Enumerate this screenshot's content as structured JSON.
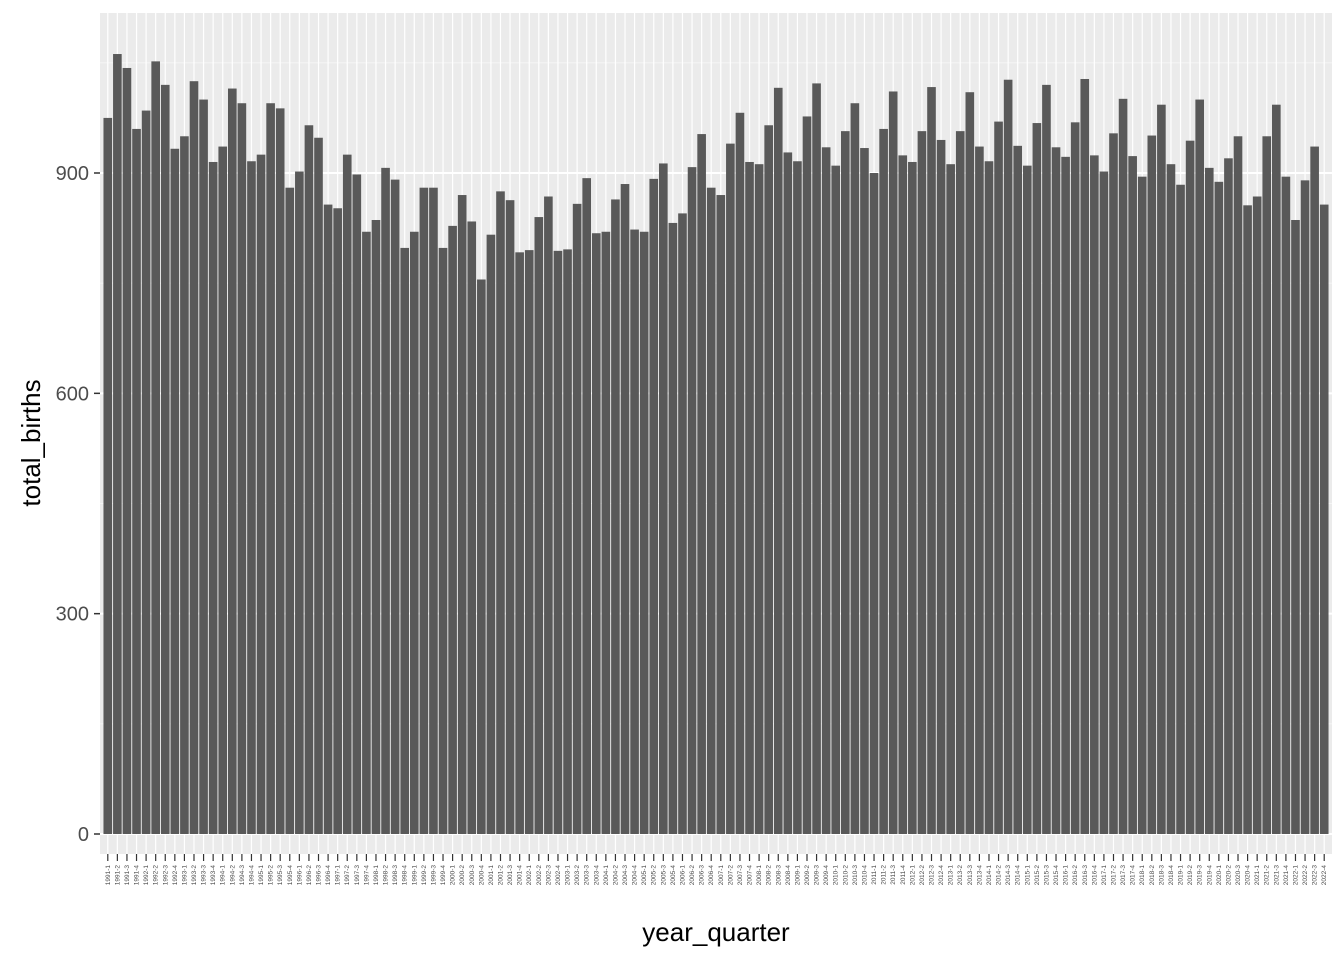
{
  "chart_data": {
    "type": "bar",
    "title": "",
    "xlabel": "year_quarter",
    "ylabel": "total_births",
    "ylim": [
      0,
      1080
    ],
    "yticks": [
      0,
      300,
      600,
      900
    ],
    "grid": true,
    "panel_background": "#ebebeb",
    "bar_color": "#595959",
    "categories": [
      "1991-1",
      "1991-2",
      "1991-3",
      "1991-4",
      "1992-1",
      "1992-2",
      "1992-3",
      "1992-4",
      "1993-1",
      "1993-2",
      "1993-3",
      "1993-4",
      "1994-1",
      "1994-2",
      "1994-3",
      "1994-4",
      "1995-1",
      "1995-2",
      "1995-3",
      "1995-4",
      "1996-1",
      "1996-2",
      "1996-3",
      "1996-4",
      "1997-1",
      "1997-2",
      "1997-3",
      "1997-4",
      "1998-1",
      "1998-2",
      "1998-3",
      "1998-4",
      "1999-1",
      "1999-2",
      "1999-3",
      "1999-4",
      "2000-1",
      "2000-2",
      "2000-3",
      "2000-4",
      "2001-1",
      "2001-2",
      "2001-3",
      "2001-4",
      "2002-1",
      "2002-2",
      "2002-3",
      "2002-4",
      "2003-1",
      "2003-2",
      "2003-3",
      "2003-4",
      "2004-1",
      "2004-2",
      "2004-3",
      "2004-4",
      "2005-1",
      "2005-2",
      "2005-3",
      "2005-4",
      "2006-1",
      "2006-2",
      "2006-3",
      "2006-4",
      "2007-1",
      "2007-2",
      "2007-3",
      "2007-4",
      "2008-1",
      "2008-2",
      "2008-3",
      "2008-4",
      "2009-1",
      "2009-2",
      "2009-3",
      "2009-4",
      "2010-1",
      "2010-2",
      "2010-3",
      "2010-4",
      "2011-1",
      "2011-2",
      "2011-3",
      "2011-4",
      "2012-1",
      "2012-2",
      "2012-3",
      "2012-4",
      "2013-1",
      "2013-2",
      "2013-3",
      "2013-4",
      "2014-1",
      "2014-2",
      "2014-3",
      "2014-4",
      "2015-1",
      "2015-2",
      "2015-3",
      "2015-4",
      "2016-1",
      "2016-2",
      "2016-3",
      "2016-4",
      "2017-1",
      "2017-2",
      "2017-3",
      "2017-4",
      "2018-1",
      "2018-2",
      "2018-3",
      "2018-4",
      "2019-1",
      "2019-2",
      "2019-3",
      "2019-4",
      "2020-1",
      "2020-2",
      "2020-3",
      "2020-4",
      "2021-1",
      "2021-2",
      "2021-3",
      "2021-4",
      "2022-1",
      "2022-2",
      "2022-3",
      "2022-4"
    ],
    "values": [
      975,
      1062,
      1043,
      960,
      985,
      1052,
      1020,
      933,
      950,
      1025,
      1000,
      915,
      936,
      1015,
      995,
      916,
      925,
      995,
      988,
      880,
      902,
      965,
      948,
      857,
      852,
      925,
      898,
      820,
      836,
      907,
      891,
      798,
      820,
      880,
      880,
      798,
      828,
      870,
      834,
      755,
      816,
      875,
      863,
      792,
      795,
      840,
      868,
      794,
      796,
      858,
      893,
      818,
      820,
      864,
      885,
      823,
      820,
      892,
      913,
      832,
      845,
      908,
      953,
      880,
      870,
      940,
      982,
      915,
      912,
      965,
      1016,
      928,
      916,
      977,
      1022,
      935,
      910,
      957,
      995,
      934,
      900,
      960,
      1011,
      924,
      915,
      957,
      1017,
      945,
      912,
      957,
      1010,
      936,
      916,
      970,
      1027,
      937,
      910,
      968,
      1020,
      935,
      922,
      969,
      1028,
      924,
      902,
      954,
      1001,
      923,
      895,
      951,
      993,
      912,
      884,
      944,
      1000,
      907,
      888,
      920,
      950,
      856,
      868,
      950,
      993,
      895,
      836,
      890,
      936,
      857
    ]
  }
}
